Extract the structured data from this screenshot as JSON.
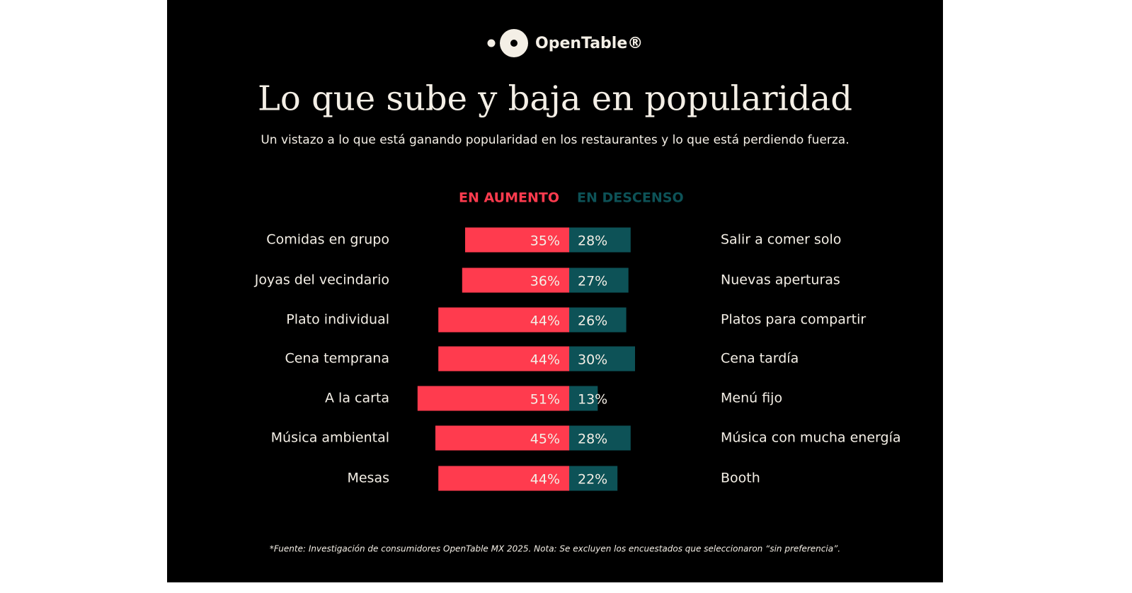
{
  "chart_data": {
    "type": "diverging-bar",
    "brand": "OpenTable®",
    "title": "Lo que sube y baja en popularidad",
    "subtitle": "Un vistazo a lo que está ganando popularidad en los restaurantes y lo que está perdiendo fuerza.",
    "series": [
      {
        "name": "EN AUMENTO",
        "color": "#ff3b4e",
        "categories": [
          "Comidas en grupo",
          "Joyas del vecindario",
          "Plato individual",
          "Cena temprana",
          "A la carta",
          "Música ambiental",
          "Mesas"
        ],
        "values": [
          35,
          36,
          44,
          44,
          51,
          45,
          44
        ],
        "value_labels": [
          "35%",
          "36%",
          "44%",
          "44%",
          "51%",
          "45%",
          "44%"
        ]
      },
      {
        "name": "EN DESCENSO",
        "color": "#0d5257",
        "categories": [
          "Salir a comer solo",
          "Nuevas aperturas",
          "Platos para compartir",
          "Cena tardía",
          "Menú fijo",
          "Música con mucha energía",
          "Booth"
        ],
        "values": [
          28,
          27,
          26,
          30,
          13,
          28,
          22
        ],
        "value_labels": [
          "28%",
          "27%",
          "26%",
          "30%",
          "13%",
          "28%",
          "22%"
        ]
      }
    ],
    "footnote": "*Fuente: Investigación de consumidores OpenTable MX 2025. Nota: Se excluyen los encuestados que seleccionaron “sin preferencia”."
  }
}
